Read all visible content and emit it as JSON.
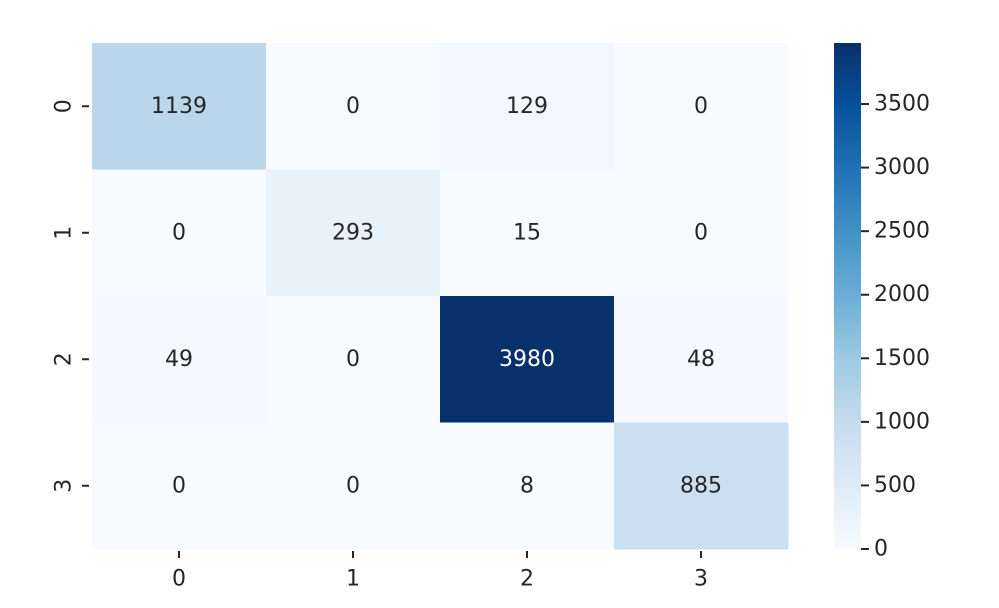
{
  "chart_data": {
    "type": "heatmap",
    "title": "",
    "xlabel": "",
    "ylabel": "",
    "x_categories": [
      "0",
      "1",
      "2",
      "3"
    ],
    "y_categories": [
      "0",
      "1",
      "2",
      "3"
    ],
    "values": [
      [
        1139,
        0,
        129,
        0
      ],
      [
        0,
        293,
        15,
        0
      ],
      [
        49,
        0,
        3980,
        48
      ],
      [
        0,
        0,
        8,
        885
      ]
    ],
    "colormap": "Blues",
    "colorbar": {
      "range": [
        0,
        3980
      ],
      "ticks": [
        0,
        500,
        1000,
        1500,
        2000,
        2500,
        3000,
        3500
      ],
      "tick_labels": [
        "0",
        "500",
        "1000",
        "1500",
        "2000",
        "2500",
        "3000",
        "3500"
      ]
    },
    "annotations": true
  }
}
